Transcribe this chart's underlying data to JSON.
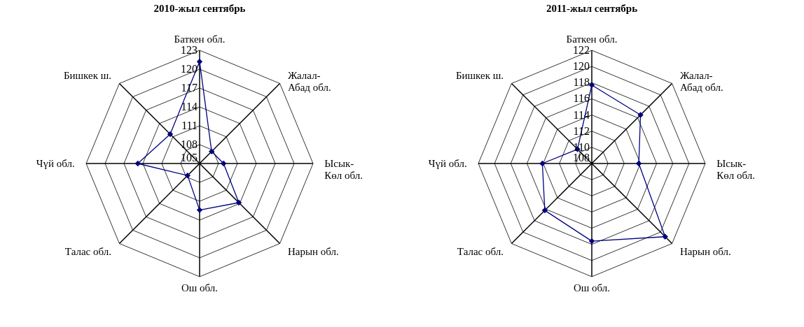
{
  "chart_data": [
    {
      "type": "radar",
      "title": "2010-жыл сентябрь",
      "categories": [
        "Баткен обл.",
        "Жалал-Абад обл.",
        "Ысык-Көл обл.",
        "Нарын обл.",
        "Ош обл.",
        "Талас обл.",
        "Чүй обл.",
        "Бишкек ш."
      ],
      "series": [
        {
          "color": "#000080",
          "values": [
            121.2,
            107.7,
            108.8,
            113.8,
            112.4,
            107.7,
            114.8,
            111.6
          ]
        }
      ],
      "ylim": [
        105,
        123
      ],
      "yticks": [
        105,
        108,
        111,
        114,
        117,
        120,
        123
      ],
      "grid": true,
      "marker": "diamond"
    },
    {
      "type": "radar",
      "title": "2011-жыл сентябрь",
      "categories": [
        "Баткен обл.",
        "Жалал-Абад обл.",
        "Ысык-Көл обл.",
        "Нарын обл.",
        "Ош обл.",
        "Талас обл.",
        "Чүй обл.",
        "Бишкек ш."
      ],
      "series": [
        {
          "color": "#000080",
          "values": [
            117.7,
            116.5,
            113.8,
            120.8,
            117.6,
            116.2,
            114.1,
            110.5
          ]
        }
      ],
      "ylim": [
        108,
        122
      ],
      "yticks": [
        108,
        110,
        112,
        114,
        116,
        118,
        120,
        122
      ],
      "grid": true,
      "marker": "diamond"
    }
  ]
}
